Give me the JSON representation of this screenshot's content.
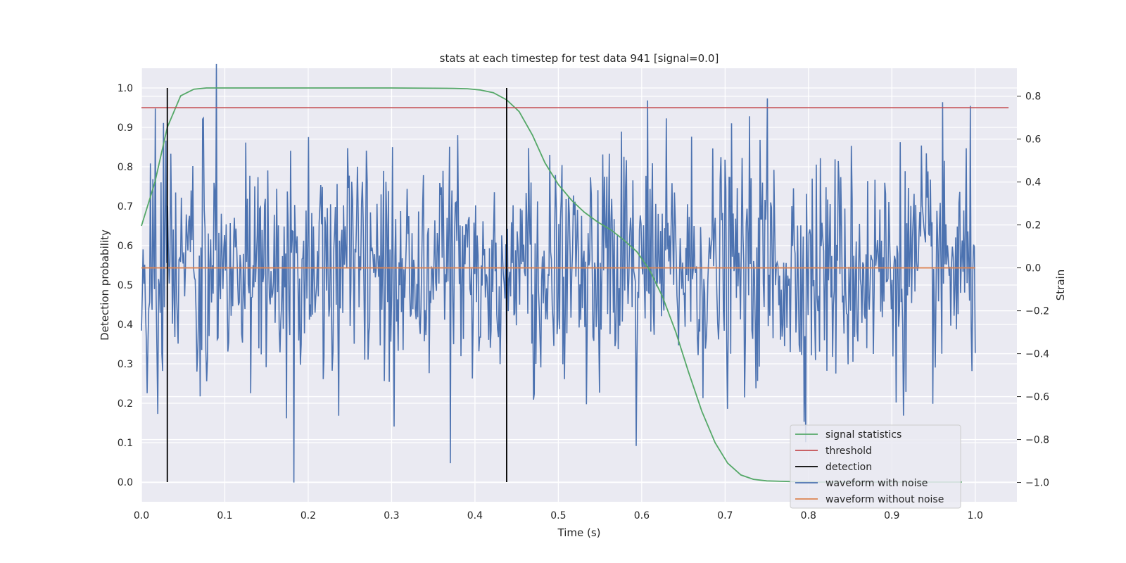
{
  "chart_data": {
    "type": "line",
    "title": "stats at each timestep for test data 941 [signal=0.0]",
    "xlabel": "Time (s)",
    "ylabel": "Detection probability",
    "y2label": "Strain",
    "xlim": [
      0.0,
      1.05
    ],
    "ylim": [
      -0.05,
      1.05
    ],
    "y2lim": [
      -1.09,
      0.93
    ],
    "xticks": [
      "0.0",
      "0.1",
      "0.2",
      "0.3",
      "0.4",
      "0.5",
      "0.6",
      "0.7",
      "0.8",
      "0.9",
      "1.0"
    ],
    "yticks": [
      "0.0",
      "0.1",
      "0.2",
      "0.3",
      "0.4",
      "0.5",
      "0.6",
      "0.7",
      "0.8",
      "0.9",
      "1.0"
    ],
    "y2ticks": [
      "−1.0",
      "−0.8",
      "−0.6",
      "−0.4",
      "−0.2",
      "0.0",
      "0.2",
      "0.4",
      "0.6",
      "0.8"
    ],
    "grid": true,
    "legend_position": "lower-right",
    "signal_statistics": {
      "name": "signal statistics",
      "color": "#55a868",
      "x": [
        0.0,
        0.016,
        0.031,
        0.047,
        0.063,
        0.078,
        0.094,
        0.109,
        0.125,
        0.2,
        0.3,
        0.375,
        0.391,
        0.406,
        0.422,
        0.438,
        0.453,
        0.469,
        0.484,
        0.5,
        0.516,
        0.531,
        0.547,
        0.563,
        0.578,
        0.594,
        0.609,
        0.625,
        0.641,
        0.656,
        0.672,
        0.688,
        0.703,
        0.719,
        0.734,
        0.75,
        0.766,
        0.781,
        0.797,
        0.813,
        0.828,
        0.844,
        0.859,
        0.875,
        0.891,
        0.906,
        0.922,
        0.938,
        0.953,
        0.969,
        0.984
      ],
      "values": [
        0.65,
        0.76,
        0.9,
        0.98,
        0.997,
        1.0,
        1.0,
        1.0,
        1.0,
        1.0,
        1.0,
        0.999,
        0.998,
        0.995,
        0.988,
        0.97,
        0.94,
        0.88,
        0.81,
        0.755,
        0.715,
        0.685,
        0.66,
        0.64,
        0.615,
        0.585,
        0.54,
        0.47,
        0.38,
        0.28,
        0.18,
        0.1,
        0.048,
        0.018,
        0.007,
        0.003,
        0.002,
        0.001,
        0.001,
        0.0,
        0.0,
        0.0,
        0.0,
        0.0,
        0.0,
        0.0,
        0.0,
        0.0,
        0.0,
        0.0,
        0.0
      ]
    },
    "threshold": {
      "name": "threshold",
      "color": "#c44e52",
      "value": 0.95,
      "x_range": [
        0.0,
        1.04
      ]
    },
    "detection": {
      "name": "detection",
      "color": "#000000",
      "x": [
        0.031,
        0.438
      ],
      "y_range": [
        0.0,
        1.0
      ]
    },
    "waveform_with_noise": {
      "name": "waveform with noise",
      "color": "#4c72b0",
      "x_range": [
        0.0,
        1.0
      ],
      "n_points": 1024,
      "peaks": [
        {
          "x": 0.09,
          "y": 0.95
        },
        {
          "x": 0.183,
          "y": -1.0
        },
        {
          "x": 0.751,
          "y": 0.79
        },
        {
          "x": 0.37,
          "y": -0.91
        },
        {
          "x": 0.593,
          "y": -0.83
        }
      ],
      "sigma": 0.27
    },
    "waveform_without_noise": {
      "name": "waveform without noise",
      "color": "#dd8452",
      "value": 0.0,
      "x_range": [
        0.0,
        1.0
      ]
    }
  }
}
